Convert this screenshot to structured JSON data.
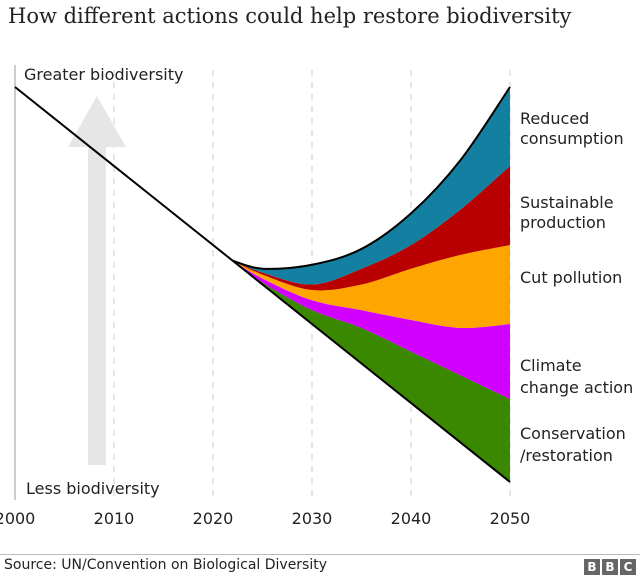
{
  "title": "How different actions could help restore biodiversity",
  "source": "Source: UN/Convention on Biological Diversity",
  "logo": "BBC",
  "chart_data": {
    "type": "area",
    "title": "How different actions could help restore biodiversity",
    "xlabel": "",
    "ylabel": "",
    "y_top_label": "Greater biodiversity",
    "y_bottom_label": "Less biodiversity",
    "xlim": [
      2000,
      2050
    ],
    "ylim": [
      0,
      100
    ],
    "x_ticks": [
      "2000",
      "2010",
      "2020",
      "2030",
      "2040",
      "2050"
    ],
    "grid": "vertical dashed",
    "legend": "right (direct labels)",
    "trend": {
      "x": [
        2000,
        2050
      ],
      "y": [
        100,
        0
      ]
    },
    "x": [
      2022,
      2025,
      2030,
      2035,
      2040,
      2045,
      2050
    ],
    "baseline": [
      56,
      50,
      40,
      30,
      20,
      10,
      0
    ],
    "series": [
      {
        "name": "Conservation /restoration",
        "label_lines": [
          "Conservation",
          "/restoration"
        ],
        "color": "#3A8700",
        "upper": [
          56,
          50.5,
          43.5,
          39,
          33,
          27,
          21
        ]
      },
      {
        "name": "Climate change action",
        "label_lines": [
          "Climate",
          "change action"
        ],
        "color": "#D100FF",
        "upper": [
          56,
          51.5,
          46,
          43.5,
          41,
          39,
          40
        ]
      },
      {
        "name": "Cut pollution",
        "label_lines": [
          "Cut pollution"
        ],
        "color": "#FFA500",
        "upper": [
          56,
          52.5,
          48.6,
          50,
          54,
          57.5,
          60
        ]
      },
      {
        "name": "Sustainable production",
        "label_lines": [
          "Sustainable",
          "production"
        ],
        "color": "#B80000",
        "upper": [
          56,
          53,
          50,
          54,
          60,
          69,
          80
        ]
      },
      {
        "name": "Reduced consumption",
        "label_lines": [
          "Reduced",
          "consumption"
        ],
        "color": "#1380A1",
        "upper": [
          56,
          54,
          55,
          59,
          68,
          81.5,
          100
        ]
      }
    ]
  }
}
